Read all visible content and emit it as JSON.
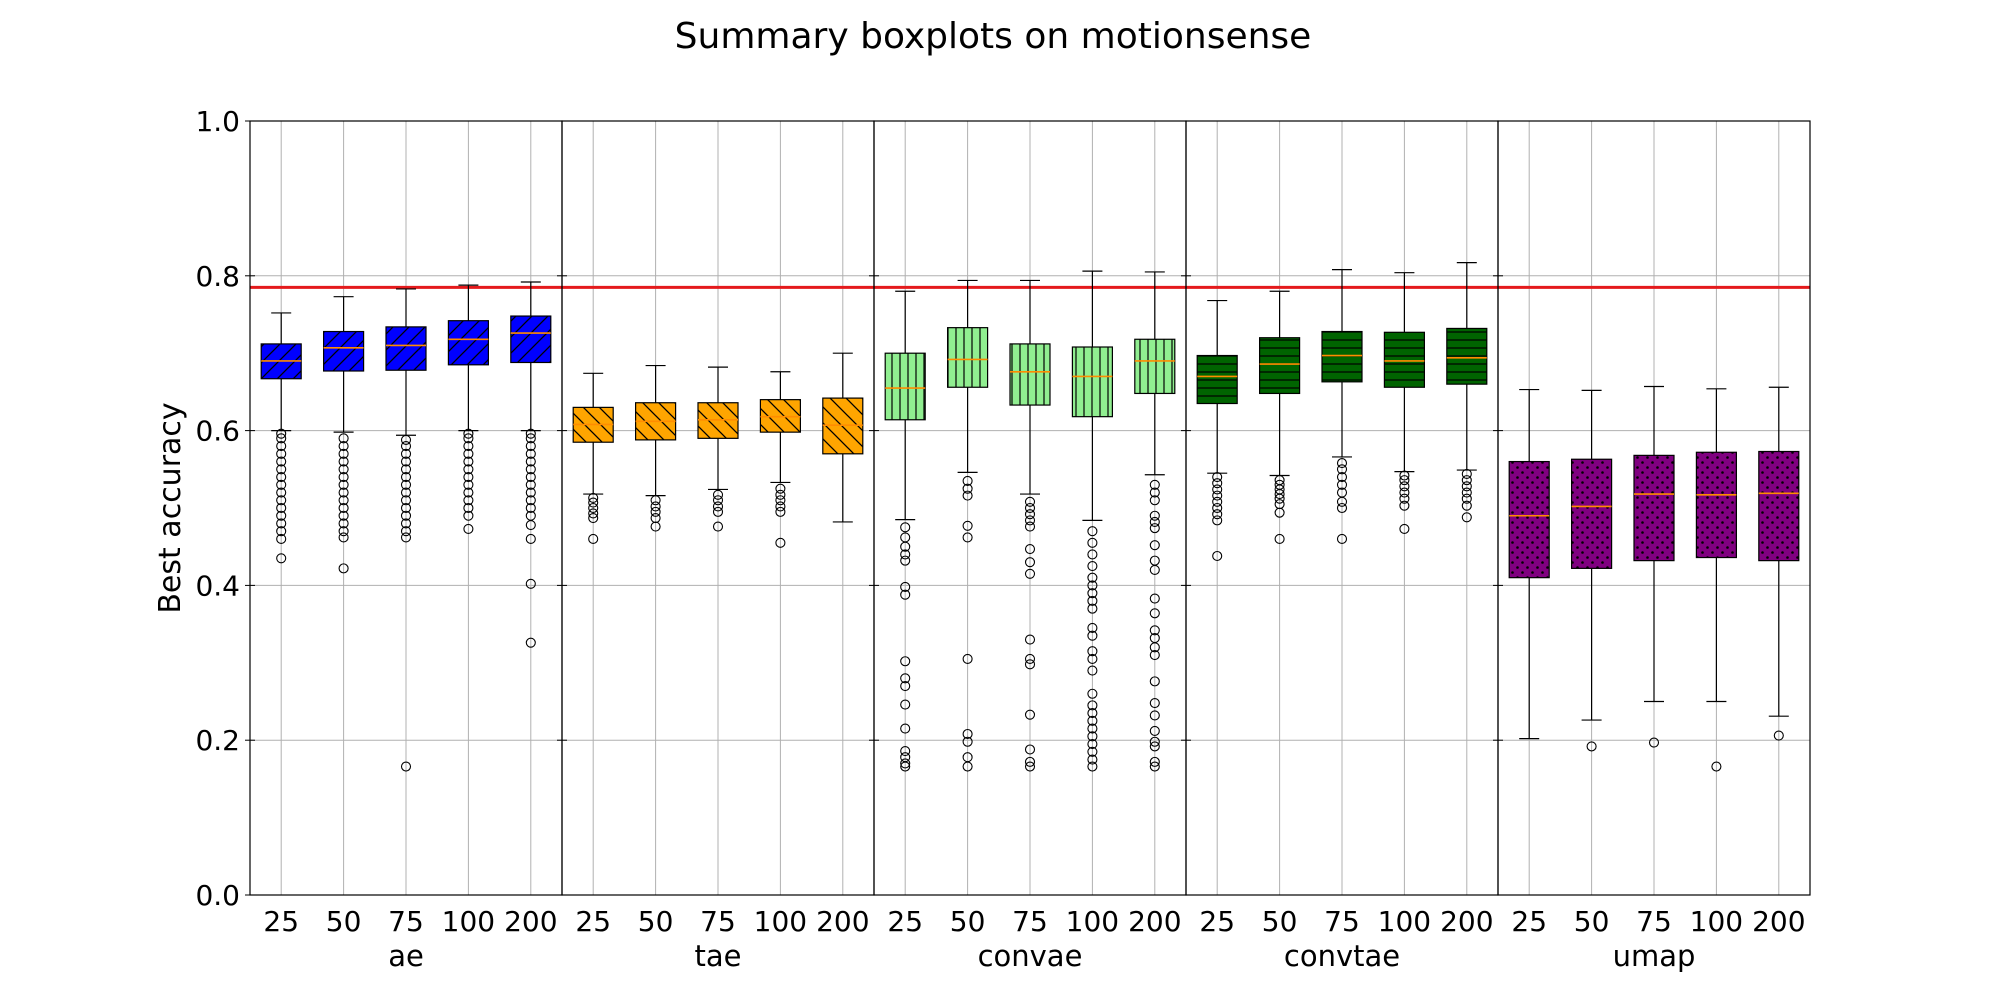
{
  "chart_data": {
    "type": "boxplot",
    "title": "Summary boxplots on motionsense",
    "ylabel": "Best accuracy",
    "ylim": [
      0,
      1
    ],
    "yticks": [
      "0.0",
      "0.2",
      "0.4",
      "0.6",
      "0.8",
      "1.0"
    ],
    "grid": true,
    "reference_line": {
      "value": 0.785,
      "color": "#e41a1c"
    },
    "groups": [
      {
        "name": "ae",
        "color": "#0000ff",
        "hatch": "diag-fwd",
        "boxes": [
          {
            "label": "25",
            "q1": 0.667,
            "median": 0.69,
            "q3": 0.712,
            "whisker_low": 0.6,
            "whisker_high": 0.752,
            "outliers": [
              0.435,
              0.46,
              0.47,
              0.48,
              0.49,
              0.5,
              0.51,
              0.52,
              0.53,
              0.54,
              0.55,
              0.56,
              0.57,
              0.58,
              0.59,
              0.596
            ]
          },
          {
            "label": "50",
            "q1": 0.677,
            "median": 0.707,
            "q3": 0.728,
            "whisker_low": 0.598,
            "whisker_high": 0.773,
            "outliers": [
              0.422,
              0.462,
              0.47,
              0.48,
              0.49,
              0.5,
              0.51,
              0.52,
              0.53,
              0.54,
              0.55,
              0.56,
              0.57,
              0.58,
              0.59
            ]
          },
          {
            "label": "75",
            "q1": 0.678,
            "median": 0.71,
            "q3": 0.734,
            "whisker_low": 0.594,
            "whisker_high": 0.783,
            "outliers": [
              0.166,
              0.462,
              0.47,
              0.48,
              0.49,
              0.5,
              0.51,
              0.52,
              0.53,
              0.54,
              0.55,
              0.56,
              0.57,
              0.58,
              0.588
            ]
          },
          {
            "label": "100",
            "q1": 0.685,
            "median": 0.718,
            "q3": 0.742,
            "whisker_low": 0.6,
            "whisker_high": 0.788,
            "outliers": [
              0.473,
              0.49,
              0.5,
              0.51,
              0.52,
              0.53,
              0.54,
              0.55,
              0.56,
              0.57,
              0.58,
              0.59,
              0.596
            ]
          },
          {
            "label": "200",
            "q1": 0.688,
            "median": 0.726,
            "q3": 0.748,
            "whisker_low": 0.6,
            "whisker_high": 0.792,
            "outliers": [
              0.326,
              0.402,
              0.46,
              0.478,
              0.49,
              0.5,
              0.51,
              0.52,
              0.53,
              0.54,
              0.55,
              0.56,
              0.57,
              0.58,
              0.59,
              0.596
            ]
          }
        ]
      },
      {
        "name": "tae",
        "color": "#ffa500",
        "hatch": "diag-back",
        "boxes": [
          {
            "label": "25",
            "q1": 0.585,
            "median": 0.608,
            "q3": 0.63,
            "whisker_low": 0.518,
            "whisker_high": 0.674,
            "outliers": [
              0.46,
              0.487,
              0.493,
              0.5,
              0.507,
              0.513
            ]
          },
          {
            "label": "50",
            "q1": 0.588,
            "median": 0.612,
            "q3": 0.636,
            "whisker_low": 0.516,
            "whisker_high": 0.684,
            "outliers": [
              0.476,
              0.487,
              0.495,
              0.502,
              0.51
            ]
          },
          {
            "label": "75",
            "q1": 0.59,
            "median": 0.614,
            "q3": 0.636,
            "whisker_low": 0.524,
            "whisker_high": 0.682,
            "outliers": [
              0.476,
              0.495,
              0.502,
              0.51,
              0.517
            ]
          },
          {
            "label": "100",
            "q1": 0.598,
            "median": 0.618,
            "q3": 0.64,
            "whisker_low": 0.533,
            "whisker_high": 0.676,
            "outliers": [
              0.455,
              0.495,
              0.502,
              0.51,
              0.517,
              0.525
            ]
          },
          {
            "label": "200",
            "q1": 0.57,
            "median": 0.607,
            "q3": 0.642,
            "whisker_low": 0.482,
            "whisker_high": 0.7,
            "outliers": []
          }
        ]
      },
      {
        "name": "convae",
        "color": "#90ee90",
        "hatch": "vertical",
        "boxes": [
          {
            "label": "25",
            "q1": 0.614,
            "median": 0.655,
            "q3": 0.7,
            "whisker_low": 0.485,
            "whisker_high": 0.78,
            "outliers": [
              0.166,
              0.17,
              0.178,
              0.186,
              0.215,
              0.246,
              0.27,
              0.28,
              0.302,
              0.388,
              0.398,
              0.432,
              0.44,
              0.45,
              0.462,
              0.475
            ]
          },
          {
            "label": "50",
            "q1": 0.656,
            "median": 0.692,
            "q3": 0.733,
            "whisker_low": 0.546,
            "whisker_high": 0.794,
            "outliers": [
              0.166,
              0.178,
              0.198,
              0.208,
              0.305,
              0.462,
              0.477,
              0.516,
              0.525,
              0.535
            ]
          },
          {
            "label": "75",
            "q1": 0.633,
            "median": 0.676,
            "q3": 0.712,
            "whisker_low": 0.518,
            "whisker_high": 0.794,
            "outliers": [
              0.166,
              0.172,
              0.188,
              0.233,
              0.298,
              0.305,
              0.33,
              0.415,
              0.43,
              0.447,
              0.476,
              0.484,
              0.492,
              0.5,
              0.508
            ]
          },
          {
            "label": "100",
            "q1": 0.618,
            "median": 0.67,
            "q3": 0.708,
            "whisker_low": 0.484,
            "whisker_high": 0.806,
            "outliers": [
              0.166,
              0.175,
              0.185,
              0.195,
              0.205,
              0.215,
              0.225,
              0.235,
              0.245,
              0.26,
              0.29,
              0.305,
              0.315,
              0.335,
              0.345,
              0.37,
              0.38,
              0.39,
              0.4,
              0.41,
              0.425,
              0.44,
              0.455,
              0.47
            ]
          },
          {
            "label": "200",
            "q1": 0.648,
            "median": 0.69,
            "q3": 0.718,
            "whisker_low": 0.543,
            "whisker_high": 0.805,
            "outliers": [
              0.166,
              0.172,
              0.192,
              0.198,
              0.212,
              0.232,
              0.248,
              0.276,
              0.31,
              0.32,
              0.332,
              0.342,
              0.364,
              0.383,
              0.42,
              0.432,
              0.452,
              0.474,
              0.482,
              0.49,
              0.51,
              0.52,
              0.53
            ]
          }
        ]
      },
      {
        "name": "convtae",
        "color": "#006400",
        "hatch": "horizontal",
        "boxes": [
          {
            "label": "25",
            "q1": 0.635,
            "median": 0.67,
            "q3": 0.697,
            "whisker_low": 0.545,
            "whisker_high": 0.768,
            "outliers": [
              0.438,
              0.484,
              0.492,
              0.5,
              0.508,
              0.516,
              0.524,
              0.532,
              0.54
            ]
          },
          {
            "label": "50",
            "q1": 0.648,
            "median": 0.686,
            "q3": 0.72,
            "whisker_low": 0.542,
            "whisker_high": 0.78,
            "outliers": [
              0.46,
              0.494,
              0.505,
              0.512,
              0.518,
              0.524,
              0.53,
              0.536
            ]
          },
          {
            "label": "75",
            "q1": 0.663,
            "median": 0.697,
            "q3": 0.728,
            "whisker_low": 0.566,
            "whisker_high": 0.808,
            "outliers": [
              0.46,
              0.5,
              0.508,
              0.52,
              0.53,
              0.54,
              0.55,
              0.558
            ]
          },
          {
            "label": "100",
            "q1": 0.656,
            "median": 0.69,
            "q3": 0.727,
            "whisker_low": 0.547,
            "whisker_high": 0.804,
            "outliers": [
              0.473,
              0.503,
              0.512,
              0.52,
              0.528,
              0.536,
              0.542
            ]
          },
          {
            "label": "200",
            "q1": 0.66,
            "median": 0.694,
            "q3": 0.732,
            "whisker_low": 0.549,
            "whisker_high": 0.817,
            "outliers": [
              0.488,
              0.503,
              0.512,
              0.52,
              0.528,
              0.536,
              0.544
            ]
          }
        ]
      },
      {
        "name": "umap",
        "color": "#800080",
        "hatch": "dots",
        "boxes": [
          {
            "label": "25",
            "q1": 0.41,
            "median": 0.49,
            "q3": 0.56,
            "whisker_low": 0.202,
            "whisker_high": 0.653,
            "outliers": []
          },
          {
            "label": "50",
            "q1": 0.422,
            "median": 0.502,
            "q3": 0.563,
            "whisker_low": 0.226,
            "whisker_high": 0.652,
            "outliers": [
              0.192
            ]
          },
          {
            "label": "75",
            "q1": 0.432,
            "median": 0.518,
            "q3": 0.568,
            "whisker_low": 0.25,
            "whisker_high": 0.657,
            "outliers": [
              0.197
            ]
          },
          {
            "label": "100",
            "q1": 0.436,
            "median": 0.517,
            "q3": 0.572,
            "whisker_low": 0.25,
            "whisker_high": 0.654,
            "outliers": [
              0.166
            ]
          },
          {
            "label": "200",
            "q1": 0.432,
            "median": 0.519,
            "q3": 0.573,
            "whisker_low": 0.231,
            "whisker_high": 0.656,
            "outliers": [
              0.206
            ]
          }
        ]
      }
    ]
  }
}
